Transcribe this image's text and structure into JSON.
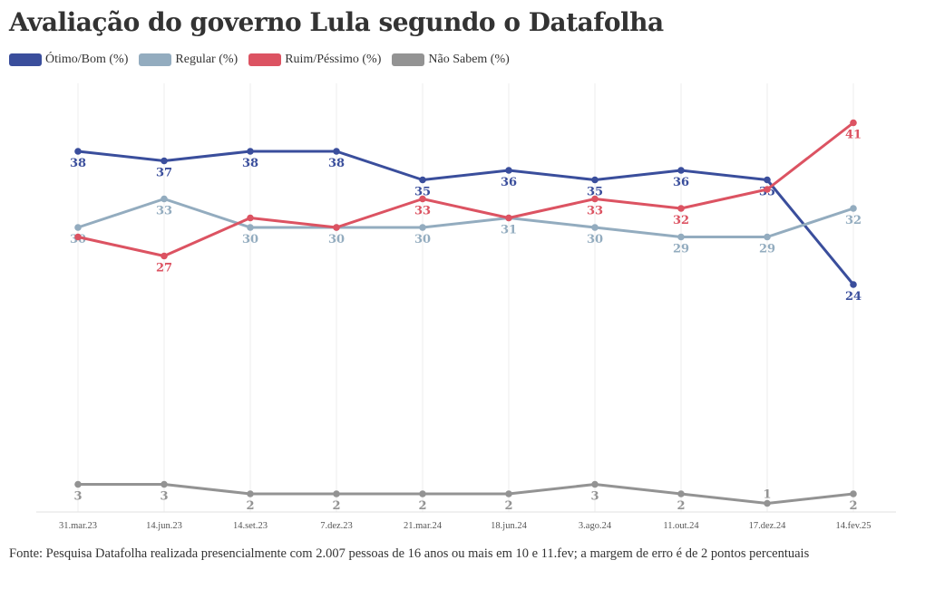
{
  "chart_data": {
    "type": "line",
    "title": "Avaliação do governo Lula segundo o Datafolha",
    "categories": [
      "31.mar.23",
      "14.jun.23",
      "14.set.23",
      "7.dez.23",
      "21.mar.24",
      "18.jun.24",
      "3.ago.24",
      "11.out.24",
      "17.dez.24",
      "14.fev.25"
    ],
    "ylim": [
      0,
      42
    ],
    "grid": "vertical",
    "legend": "top-left",
    "series": [
      {
        "name": "Ótimo/Bom (%)",
        "color": "#3a4e9c",
        "values": [
          38,
          37,
          38,
          38,
          35,
          36,
          35,
          36,
          35,
          24
        ],
        "labels": [
          38,
          37,
          38,
          38,
          35,
          36,
          35,
          36,
          35,
          24
        ]
      },
      {
        "name": "Regular (%)",
        "color": "#93acbf",
        "values": [
          30,
          33,
          30,
          30,
          30,
          31,
          30,
          29,
          29,
          32
        ],
        "labels": [
          30,
          33,
          30,
          30,
          30,
          31,
          30,
          29,
          29,
          32
        ]
      },
      {
        "name": "Ruim/Péssimo (%)",
        "color": "#dc5362",
        "values": [
          29,
          27,
          31,
          30,
          33,
          31,
          33,
          32,
          34,
          41
        ],
        "labels": [
          null,
          27,
          null,
          null,
          33,
          null,
          33,
          32,
          null,
          41
        ]
      },
      {
        "name": "Não Sabem (%)",
        "color": "#939393",
        "values": [
          3,
          3,
          2,
          2,
          2,
          2,
          3,
          2,
          1,
          2
        ],
        "labels": [
          3,
          3,
          2,
          2,
          2,
          2,
          3,
          2,
          1,
          2
        ]
      }
    ]
  },
  "source": "Fonte: Pesquisa Datafolha realizada presencialmente com 2.007 pessoas de 16 anos ou mais em 10 e 11.fev; a margem de erro é de 2 pontos percentuais"
}
